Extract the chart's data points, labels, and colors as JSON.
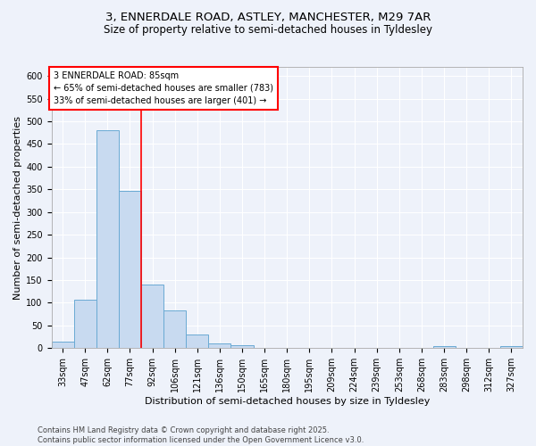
{
  "title": "3, ENNERDALE ROAD, ASTLEY, MANCHESTER, M29 7AR",
  "subtitle": "Size of property relative to semi-detached houses in Tyldesley",
  "xlabel": "Distribution of semi-detached houses by size in Tyldesley",
  "ylabel": "Number of semi-detached properties",
  "categories": [
    "33sqm",
    "47sqm",
    "62sqm",
    "77sqm",
    "92sqm",
    "106sqm",
    "121sqm",
    "136sqm",
    "150sqm",
    "165sqm",
    "180sqm",
    "195sqm",
    "209sqm",
    "224sqm",
    "239sqm",
    "253sqm",
    "268sqm",
    "283sqm",
    "298sqm",
    "312sqm",
    "327sqm"
  ],
  "values": [
    15,
    106,
    480,
    347,
    140,
    83,
    30,
    11,
    6,
    0,
    0,
    0,
    0,
    0,
    0,
    0,
    0,
    4,
    0,
    0,
    5
  ],
  "bar_color": "#c8daf0",
  "bar_edge_color": "#6aaad4",
  "red_line_x": 3.5,
  "annotation_title": "3 ENNERDALE ROAD: 85sqm",
  "annotation_line1": "← 65% of semi-detached houses are smaller (783)",
  "annotation_line2": "33% of semi-detached houses are larger (401) →",
  "ylim": [
    0,
    620
  ],
  "yticks": [
    0,
    50,
    100,
    150,
    200,
    250,
    300,
    350,
    400,
    450,
    500,
    550,
    600
  ],
  "footer1": "Contains HM Land Registry data © Crown copyright and database right 2025.",
  "footer2": "Contains public sector information licensed under the Open Government Licence v3.0.",
  "bg_color": "#eef2fa",
  "grid_color": "#ffffff",
  "title_fontsize": 9.5,
  "subtitle_fontsize": 8.5,
  "ylabel_fontsize": 8,
  "xlabel_fontsize": 8,
  "tick_fontsize": 7,
  "ann_fontsize": 7,
  "footer_fontsize": 6
}
